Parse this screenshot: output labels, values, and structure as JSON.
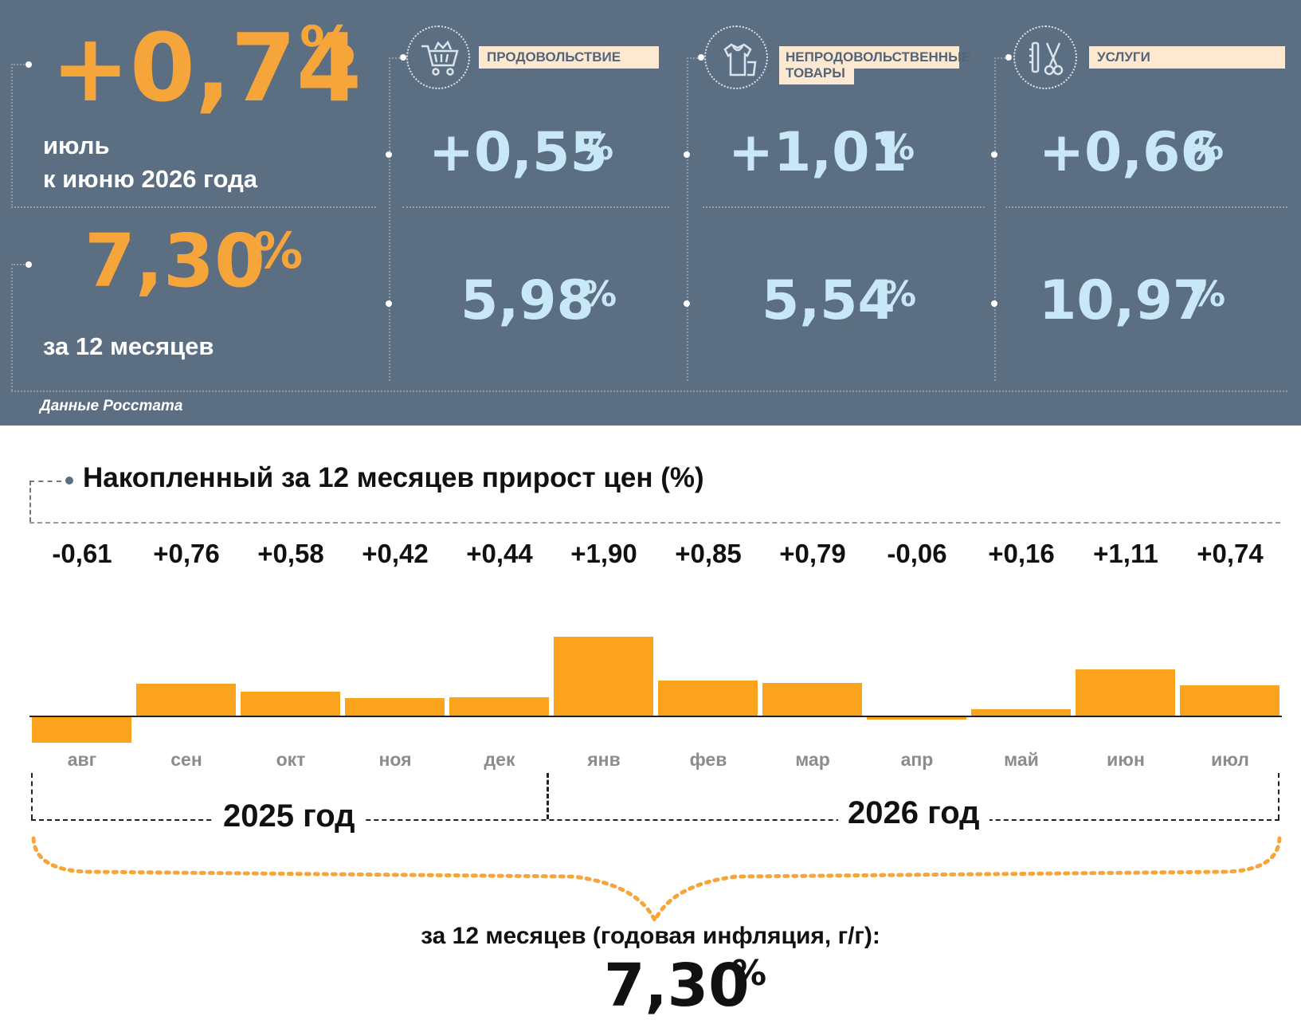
{
  "summary": {
    "monthly": {
      "value": "+0,74",
      "unit": "%",
      "line1": "июль",
      "line2": "к июню 2026 года"
    },
    "annual": {
      "value": "7,30",
      "unit": "%",
      "label": "за 12 месяцев"
    },
    "categories": [
      {
        "name": "ПРОДОВОЛЬСТВИЕ",
        "icon": "shopping-cart-icon",
        "monthly": "+0,55",
        "annual": "5,98"
      },
      {
        "name": "НЕПРОДОВОЛЬСТВЕННЫЕ ТОВАРЫ",
        "name_line1": "НЕПРОДОВОЛЬСТВЕННЫЕ",
        "name_line2": "ТОВАРЫ",
        "icon": "clothing-icon",
        "monthly": "+1,01",
        "annual": "5,54"
      },
      {
        "name": "УСЛУГИ",
        "icon": "scissors-comb-icon",
        "monthly": "+0,66",
        "annual": "10,97"
      }
    ],
    "unit": "%",
    "source": "Данные Росстата",
    "colors": {
      "panel_bg": "#5b6e82",
      "orange": "#f6a53a",
      "light_blue": "#c9e8f7",
      "label_bg": "#fde9d2"
    }
  },
  "chart_data": {
    "type": "bar",
    "title": "Накопленный за 12 месяцев прирост цен (%)",
    "categories": [
      "авг",
      "сен",
      "окт",
      "ноя",
      "дек",
      "янв",
      "фев",
      "мар",
      "апр",
      "май",
      "июн",
      "июл"
    ],
    "values": [
      -0.61,
      0.76,
      0.58,
      0.42,
      0.44,
      1.9,
      0.85,
      0.79,
      -0.06,
      0.16,
      1.11,
      0.74
    ],
    "value_labels": [
      "-0,61",
      "+0,76",
      "+0,58",
      "+0,42",
      "+0,44",
      "+1,90",
      "+0,85",
      "+0,79",
      "-0,06",
      "+0,16",
      "+1,11",
      "+0,74"
    ],
    "years": [
      {
        "label": "2025 год",
        "months": 5
      },
      {
        "label": "2026 год",
        "months": 7
      }
    ],
    "bar_color": "#fca31d",
    "annual_caption": "за 12 месяцев (годовая инфляция, г/г):",
    "annual_value": "7,30",
    "annual_unit": "%"
  }
}
